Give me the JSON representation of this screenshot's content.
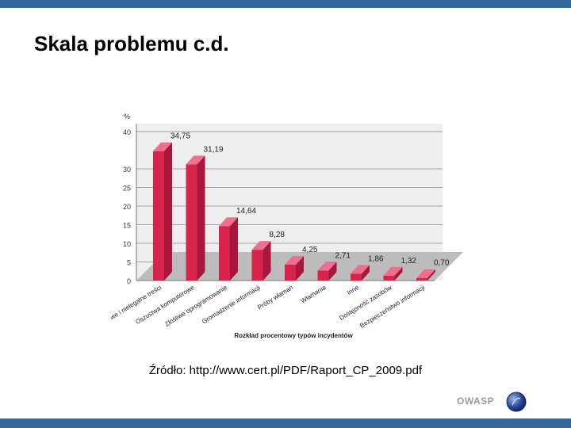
{
  "slide": {
    "title": "Skala problemu c.d.",
    "source": "Źródło: http://www.cert.pl/PDF/Raport_CP_2009.pdf",
    "logo_text": "OWASP"
  },
  "colors": {
    "band": "#336699",
    "bar_front": "#d8244a",
    "bar_side": "#a8163a",
    "bar_top": "#ee6f8f",
    "floor": "#bcbcbc",
    "wall": "#eeeeee"
  },
  "chart_data": {
    "type": "bar",
    "unit_label": "%",
    "xlabel": "Rozkład procentowy typów incydentów",
    "ylim": [
      0,
      40
    ],
    "yticks": [
      0,
      5,
      10,
      15,
      20,
      25,
      30,
      40
    ],
    "categories": [
      "Obraźliwe i nielegalne treści",
      "Oszustwa komputerowe",
      "Złośliwe oprogramowanie",
      "Gromadzenie informacji",
      "Próby włamań",
      "Włamania",
      "Inne",
      "Dostępność zasobów",
      "Bezpieczeństwo informacji"
    ],
    "values": [
      34.75,
      31.19,
      14.64,
      8.28,
      4.25,
      2.71,
      1.86,
      1.32,
      0.7
    ],
    "value_labels": [
      "34,75",
      "31,19",
      "14,64",
      "8,28",
      "4,25",
      "2,71",
      "1,86",
      "1,32",
      "0,70"
    ]
  }
}
